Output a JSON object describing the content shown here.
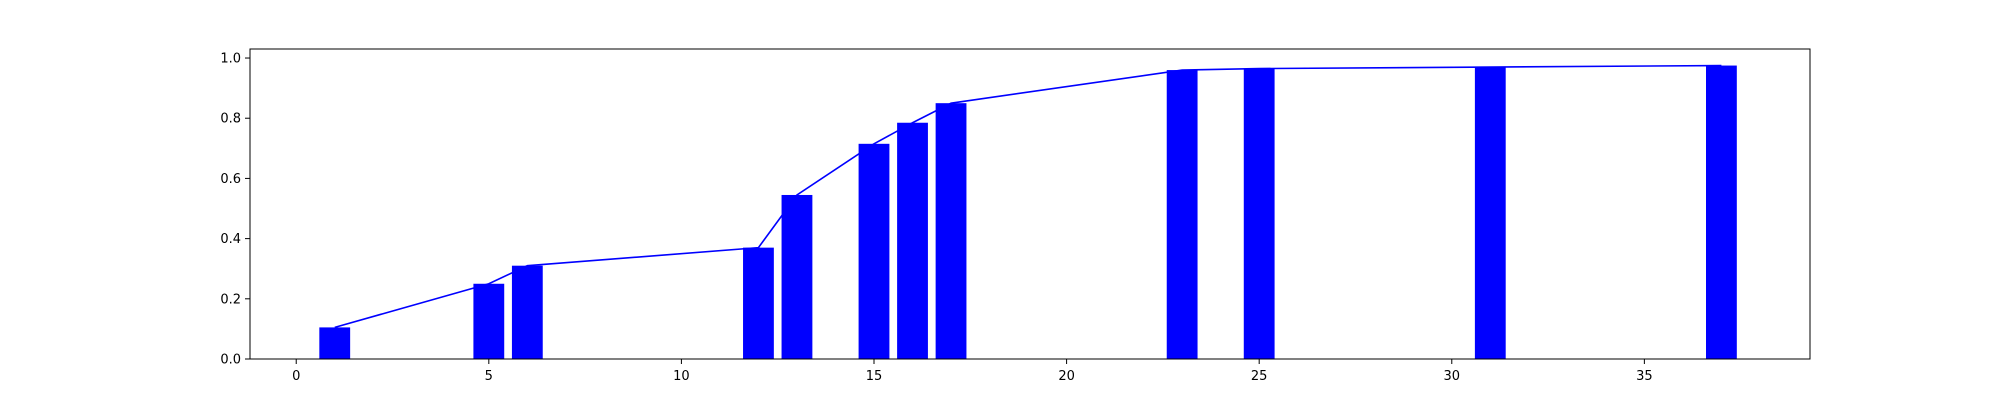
{
  "chart_data": {
    "type": "bar",
    "x": [
      1,
      5,
      6,
      12,
      13,
      15,
      16,
      17,
      23,
      25,
      31,
      37
    ],
    "series": [
      {
        "kind": "bar",
        "values": [
          0.105,
          0.25,
          0.31,
          0.37,
          0.545,
          0.715,
          0.785,
          0.85,
          0.96,
          0.965,
          0.97,
          0.975
        ]
      },
      {
        "kind": "line",
        "values": [
          0.105,
          0.25,
          0.31,
          0.37,
          0.545,
          0.715,
          0.785,
          0.85,
          0.96,
          0.965,
          0.97,
          0.975
        ]
      }
    ],
    "bar_color": "#0000ff",
    "line_color": "#0000ff",
    "xlim": [
      -1.2,
      39.3
    ],
    "ylim": [
      0,
      1.03
    ],
    "xticks": [
      0,
      5,
      10,
      15,
      20,
      25,
      30,
      35
    ],
    "xtick_labels": [
      "0",
      "5",
      "10",
      "15",
      "20",
      "25",
      "30",
      "35"
    ],
    "yticks": [
      0.0,
      0.2,
      0.4,
      0.6,
      0.8,
      1.0
    ],
    "ytick_labels": [
      "0.0",
      "0.2",
      "0.4",
      "0.6",
      "0.8",
      "1.0"
    ],
    "title": "",
    "xlabel": "",
    "ylabel": "",
    "grid": false
  }
}
